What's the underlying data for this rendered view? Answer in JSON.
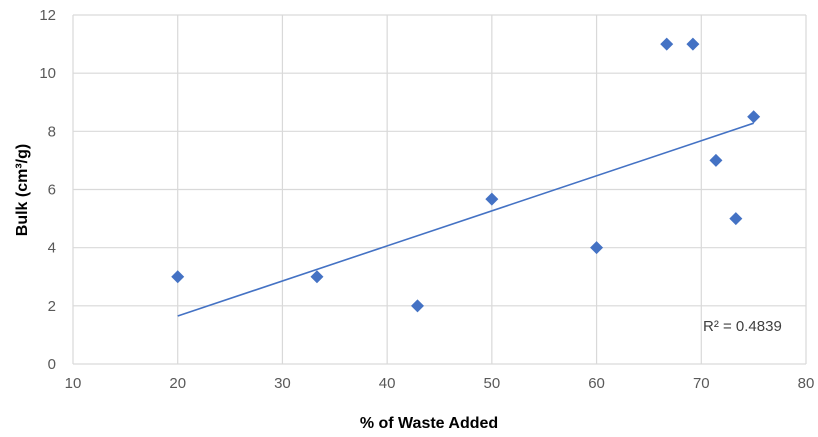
{
  "chart_data": {
    "type": "scatter",
    "title": "",
    "xlabel": "% of Waste Added",
    "ylabel": "Bulk (cm³/g)",
    "xlim": [
      10,
      80
    ],
    "ylim": [
      0,
      12
    ],
    "xticks": [
      "10",
      "20",
      "30",
      "40",
      "50",
      "60",
      "70",
      "80"
    ],
    "yticks": [
      "0",
      "2",
      "4",
      "6",
      "8",
      "10",
      "12"
    ],
    "grid": true,
    "legend": "none",
    "series": [
      {
        "marker": "diamond",
        "color": "#4472C4",
        "points": [
          {
            "x": 20,
            "y": 3
          },
          {
            "x": 33.3,
            "y": 3
          },
          {
            "x": 42.9,
            "y": 2
          },
          {
            "x": 50,
            "y": 5.67
          },
          {
            "x": 60,
            "y": 4
          },
          {
            "x": 66.7,
            "y": 11
          },
          {
            "x": 69.2,
            "y": 11
          },
          {
            "x": 71.4,
            "y": 7
          },
          {
            "x": 73.3,
            "y": 5
          },
          {
            "x": 75,
            "y": 8.5
          }
        ]
      }
    ],
    "trendline": {
      "type": "linear",
      "color": "#4472C4",
      "from": {
        "x": 20,
        "y": 1.65
      },
      "to": {
        "x": 75,
        "y": 8.28
      },
      "r_squared_label": "R² = 0.4839"
    }
  }
}
